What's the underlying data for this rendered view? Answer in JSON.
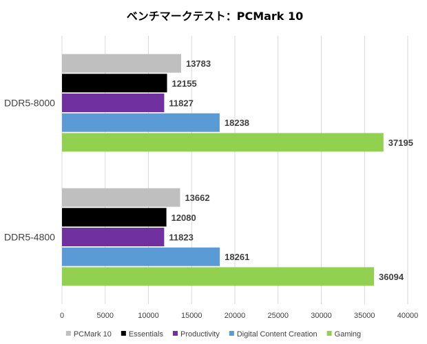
{
  "chart_data": {
    "type": "bar",
    "orientation": "horizontal",
    "title": "ベンチマークテスト：PCMark 10",
    "categories": [
      "DDR5-8000",
      "DDR5-4800"
    ],
    "series": [
      {
        "name": "PCMark 10",
        "color": "#bfbfbf",
        "values": [
          13783,
          13662
        ]
      },
      {
        "name": "Essentials",
        "color": "#000000",
        "values": [
          12155,
          12080
        ]
      },
      {
        "name": "Productivity",
        "color": "#7030a0",
        "values": [
          11827,
          11823
        ]
      },
      {
        "name": "Digital Content Creation",
        "color": "#5b9bd5",
        "values": [
          18238,
          18261
        ]
      },
      {
        "name": "Gaming",
        "color": "#92d050",
        "values": [
          37195,
          36094
        ]
      }
    ],
    "xlim": [
      0,
      40000
    ],
    "xticks": [
      "0",
      "5000",
      "10000",
      "15000",
      "20000",
      "25000",
      "30000",
      "35000",
      "40000"
    ],
    "xlabel": "",
    "ylabel": "",
    "grid": true,
    "legend": "bottom"
  }
}
